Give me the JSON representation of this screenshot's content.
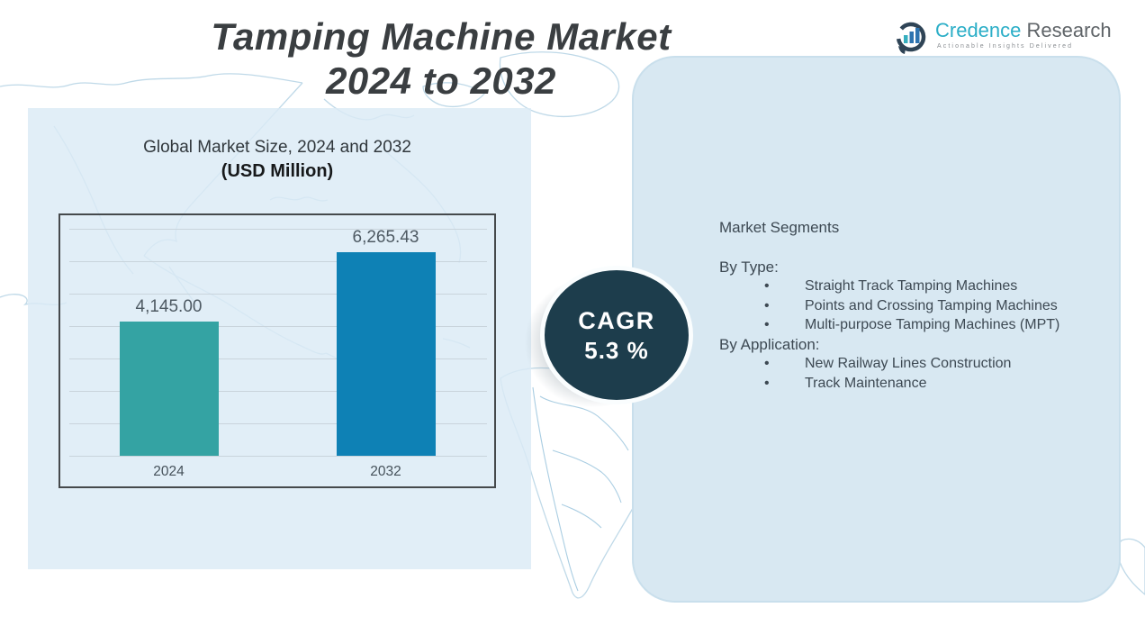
{
  "header": {
    "title_line1": "Tamping Machine Market",
    "title_line2": "2024 to 2032"
  },
  "logo": {
    "brand_primary": "Credence",
    "brand_secondary": "Research",
    "tagline": "Actionable Insights Delivered",
    "brand_primary_color": "#2BAEC7",
    "brand_secondary_color": "#5F6468"
  },
  "chart_data": {
    "type": "bar",
    "title_line1": "Global Market Size, 2024 and 2032",
    "title_line2": "(USD Million)",
    "categories": [
      "2024",
      "2032"
    ],
    "values": [
      4145.0,
      6265.43
    ],
    "value_labels": [
      "4,145.00",
      "6,265.43"
    ],
    "bar_colors": [
      "#34A3A3",
      "#0E81B5"
    ],
    "xlabel": "",
    "ylabel": "USD Million",
    "ylim": [
      0,
      7000
    ],
    "grid_step": 1000,
    "grid": true,
    "legend": false
  },
  "cagr": {
    "label": "CAGR",
    "value": "5.3 %",
    "circle_color": "#1D3D4C"
  },
  "segments": {
    "heading": "Market Segments",
    "bullet_char": "•",
    "groups": [
      {
        "label": "By Type:",
        "items": [
          "Straight Track Tamping Machines",
          "Points and Crossing Tamping Machines",
          "Multi-purpose Tamping Machines (MPT)"
        ]
      },
      {
        "label": "By Application:",
        "items": [
          "New Railway Lines Construction",
          "Track Maintenance"
        ]
      }
    ]
  },
  "colors": {
    "left_panel_bg": "#DAEAF5",
    "right_panel_bg": "#D8E8F2",
    "map_stroke": "#BFD9E8",
    "chart_border": "#45494C",
    "gridline": "#C9D4DC",
    "title_text": "#3A3E41",
    "segments_text": "#3D4953"
  }
}
